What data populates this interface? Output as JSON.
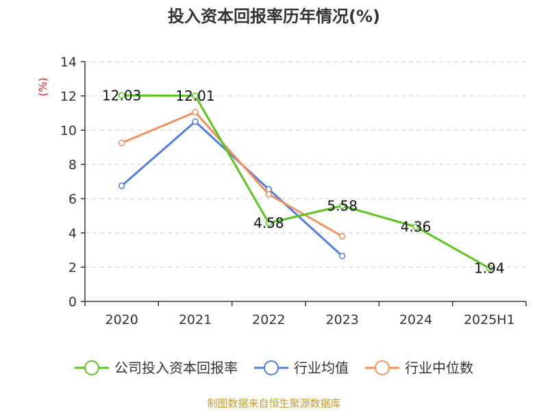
{
  "chart_data": {
    "type": "line",
    "title": "投入资本回报率历年情况(%)",
    "ylabel": "(%)",
    "xlabel": "",
    "categories": [
      "2020",
      "2021",
      "2022",
      "2023",
      "2024",
      "2025H1"
    ],
    "ylim": [
      0,
      14
    ],
    "yticks": [
      0,
      2,
      4,
      6,
      8,
      10,
      12,
      14
    ],
    "grid": true,
    "legend_position": "bottom",
    "series": [
      {
        "name": "公司投入资本回报率",
        "color": "#5cc421",
        "values": [
          12.03,
          12.01,
          4.58,
          5.58,
          4.36,
          1.94
        ],
        "labels": [
          "12.03",
          "12.01",
          "4.58",
          "5.58",
          "4.36",
          "1.94"
        ]
      },
      {
        "name": "行业均值",
        "color": "#4f7fdf",
        "values": [
          6.75,
          10.5,
          6.55,
          2.65,
          null,
          null
        ]
      },
      {
        "name": "行业中位数",
        "color": "#f3915a",
        "values": [
          9.25,
          11.05,
          6.25,
          3.8,
          null,
          null
        ]
      }
    ]
  },
  "source": "制图数据来自恒生聚源数据库",
  "colors": {
    "axis": "#333333",
    "grid": "#cccccc",
    "ylabel": "#e0201c",
    "source": "#c49a2c"
  }
}
